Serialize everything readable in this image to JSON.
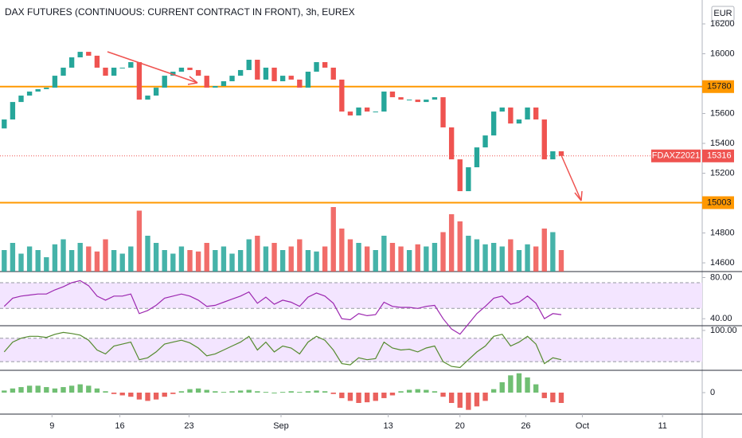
{
  "chart_data": [
    {
      "type": "candlestick",
      "title": "DAX FUTURES (CONTINUOUS: CURRENT CONTRACT IN FRONT), 3h, EUREX",
      "currency": "EUR",
      "xlim": [
        -0.5,
        82.7
      ],
      "xticks": [
        {
          "value": 5.66,
          "label": "9"
        },
        {
          "value": 13.7,
          "label": "16"
        },
        {
          "value": 21.9,
          "label": "23"
        },
        {
          "value": 32.8,
          "label": "Sep"
        },
        {
          "value": 45.5,
          "label": "13"
        },
        {
          "value": 54.0,
          "label": "20"
        },
        {
          "value": 61.8,
          "label": "26"
        },
        {
          "value": 68.5,
          "label": "Oct"
        },
        {
          "value": 78.0,
          "label": "11"
        }
      ],
      "ylim": [
        14547,
        16360
      ],
      "yticks": [
        14600,
        14800,
        15200,
        15400,
        15600,
        16000,
        16200
      ],
      "up_color": "#26a69a",
      "down_color": "#ef5350",
      "series": [
        {
          "name": "FDAXZ2021",
          "open": [
            15500,
            15560,
            15677,
            15720,
            15747,
            15763,
            15773,
            15853,
            15907,
            15976,
            16013,
            15987,
            15907,
            15853,
            15907,
            15907,
            15944,
            15693,
            15720,
            15773,
            15853,
            15880,
            15907,
            15891,
            15853,
            15773,
            15784,
            15816,
            15853,
            15891,
            15960,
            15827,
            15907,
            15816,
            15853,
            15827,
            15773,
            15880,
            15944,
            15907,
            15827,
            15613,
            15587,
            15640,
            15613,
            15613,
            15747,
            15709,
            15693,
            15693,
            15677,
            15693,
            15709,
            15507,
            15293,
            15080,
            15240,
            15373,
            15453,
            15613,
            15640,
            15533,
            15560,
            15640,
            15560,
            15293,
            15347
          ],
          "close": [
            15560,
            15677,
            15720,
            15747,
            15763,
            15773,
            15853,
            15907,
            15976,
            16013,
            15987,
            15907,
            15853,
            15907,
            15907,
            15944,
            15693,
            15720,
            15773,
            15853,
            15880,
            15907,
            15891,
            15853,
            15773,
            15784,
            15816,
            15853,
            15891,
            15960,
            15827,
            15907,
            15816,
            15853,
            15827,
            15773,
            15880,
            15944,
            15907,
            15827,
            15613,
            15587,
            15640,
            15613,
            15613,
            15747,
            15709,
            15693,
            15693,
            15677,
            15693,
            15709,
            15507,
            15293,
            15080,
            15240,
            15373,
            15453,
            15613,
            15640,
            15533,
            15560,
            15640,
            15560,
            15293,
            15347,
            15316
          ]
        }
      ],
      "volume": {
        "ylim": [
          0,
          100
        ],
        "values": [
          30,
          40,
          25,
          35,
          30,
          20,
          38,
          45,
          30,
          40,
          35,
          28,
          45,
          30,
          25,
          35,
          85,
          50,
          40,
          30,
          25,
          35,
          30,
          28,
          40,
          30,
          35,
          25,
          30,
          45,
          50,
          35,
          40,
          30,
          35,
          45,
          30,
          28,
          35,
          90,
          60,
          45,
          40,
          35,
          30,
          50,
          40,
          35,
          30,
          38,
          35,
          40,
          55,
          80,
          70,
          50,
          45,
          38,
          40,
          35,
          45,
          30,
          38,
          35,
          60,
          55,
          30
        ]
      },
      "levels": [
        {
          "value": 15780,
          "color": "#ff9800"
        },
        {
          "value": 15003,
          "color": "#ff9800"
        }
      ],
      "last_price": {
        "value": 15316,
        "color": "#ef5350"
      }
    },
    {
      "type": "line",
      "color": "#9c27b0",
      "fill": "#f3e5ff",
      "ylim": [
        34,
        85
      ],
      "yticks": [
        {
          "value": 80,
          "label": "80.00"
        },
        {
          "value": 40,
          "label": "40.00"
        }
      ],
      "bands": [
        75,
        50
      ],
      "values": [
        52,
        60,
        62,
        63,
        64,
        64,
        68,
        71,
        75,
        77,
        72,
        62,
        58,
        62,
        62,
        64,
        45,
        48,
        53,
        60,
        62,
        64,
        62,
        58,
        52,
        53,
        56,
        59,
        62,
        66,
        55,
        61,
        54,
        58,
        56,
        52,
        61,
        65,
        62,
        55,
        40,
        39,
        45,
        43,
        44,
        56,
        52,
        51,
        51,
        50,
        52,
        53,
        40,
        30,
        25,
        35,
        45,
        52,
        60,
        62,
        54,
        56,
        62,
        55,
        40,
        45,
        44
      ]
    },
    {
      "type": "line",
      "color": "#558b2f",
      "fill": "#f3e5ff",
      "ylim": [
        0,
        110
      ],
      "yticks": [
        {
          "value": 100,
          "label": "100.00"
        }
      ],
      "bands": [
        80,
        20
      ],
      "values": [
        45,
        70,
        80,
        85,
        85,
        82,
        90,
        95,
        92,
        88,
        75,
        50,
        40,
        60,
        65,
        70,
        25,
        30,
        45,
        65,
        70,
        75,
        68,
        55,
        35,
        40,
        50,
        60,
        70,
        85,
        50,
        70,
        45,
        60,
        55,
        40,
        70,
        85,
        75,
        50,
        15,
        12,
        30,
        25,
        28,
        70,
        55,
        50,
        52,
        45,
        55,
        60,
        20,
        8,
        5,
        25,
        45,
        60,
        85,
        90,
        60,
        70,
        85,
        65,
        15,
        30,
        25
      ]
    },
    {
      "type": "histogram",
      "up_color": "#4caf50",
      "down_color": "#e53935",
      "ylim": [
        -30,
        30
      ],
      "yticks": [
        0
      ],
      "values": [
        3,
        6,
        8,
        10,
        10,
        8,
        6,
        8,
        10,
        12,
        10,
        6,
        2,
        -2,
        -4,
        -6,
        -10,
        -12,
        -10,
        -6,
        -2,
        2,
        5,
        6,
        4,
        2,
        1,
        2,
        3,
        4,
        2,
        1,
        0,
        1,
        2,
        1,
        2,
        3,
        2,
        -2,
        -8,
        -12,
        -15,
        -14,
        -12,
        -8,
        -4,
        2,
        4,
        5,
        4,
        2,
        -6,
        -15,
        -22,
        -25,
        -20,
        -12,
        5,
        15,
        25,
        28,
        22,
        12,
        -8,
        -14,
        -15
      ]
    }
  ]
}
